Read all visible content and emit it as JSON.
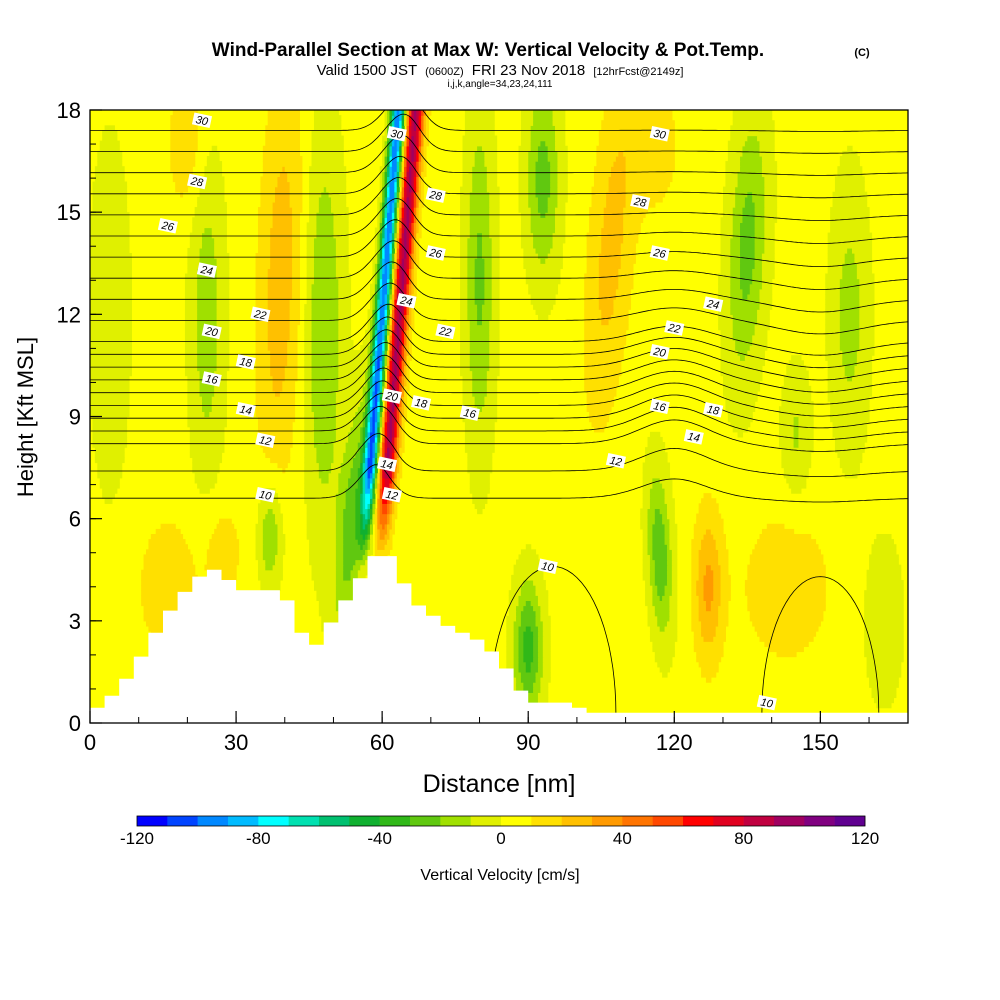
{
  "header": {
    "title": "Wind-Parallel Section at Max W: Vertical Velocity & Pot.Temp.",
    "copyright": "(C)",
    "valid_prefix": "Valid 1500 JST",
    "valid_utc": "(0600Z)",
    "valid_date": "FRI 23 Nov 2018",
    "forecast": "[12hrFcst@2149z]",
    "indices": "i,j,k,angle=34,23,24,111"
  },
  "chart_data": {
    "type": "heatmap",
    "xlabel": "Distance [nm]",
    "ylabel": "Height [Kft MSL]",
    "xlim": [
      0,
      168
    ],
    "ylim": [
      0,
      18
    ],
    "x_ticks": [
      "0",
      "30",
      "60",
      "90",
      "120",
      "150"
    ],
    "x_tick_values": [
      0,
      30,
      60,
      90,
      120,
      150
    ],
    "y_ticks": [
      "0",
      "3",
      "6",
      "9",
      "12",
      "15",
      "18"
    ],
    "y_tick_values": [
      0,
      3,
      6,
      9,
      12,
      15,
      18
    ],
    "colorbar": {
      "label": "Vertical Velocity [cm/s]",
      "min": -120,
      "max": 120,
      "step": 10,
      "tick_labels": [
        "-120",
        "-80",
        "-40",
        "0",
        "40",
        "80",
        "120"
      ],
      "tick_values": [
        -120,
        -80,
        -40,
        0,
        40,
        80,
        120
      ],
      "colors": [
        "#0000ff",
        "#0044ff",
        "#0088ff",
        "#00bbff",
        "#00ffff",
        "#00e0b0",
        "#00c070",
        "#10b030",
        "#30b818",
        "#60c810",
        "#a0e000",
        "#e0f000",
        "#ffff00",
        "#ffe000",
        "#ffc000",
        "#ff9a00",
        "#ff7400",
        "#ff4800",
        "#ff0000",
        "#e00020",
        "#c00040",
        "#a00060",
        "#800080",
        "#600090"
      ]
    },
    "isentropes_K": [
      10,
      11,
      12,
      13,
      14,
      15,
      16,
      17,
      18,
      19,
      20,
      21,
      22,
      23,
      24,
      25,
      26,
      27,
      28,
      29,
      30
    ],
    "isentrope_labels": [
      {
        "text": "30",
        "x": 23,
        "y": 17.7
      },
      {
        "text": "30",
        "x": 63,
        "y": 17.3
      },
      {
        "text": "30",
        "x": 117,
        "y": 17.3
      },
      {
        "text": "28",
        "x": 22,
        "y": 15.9
      },
      {
        "text": "28",
        "x": 71,
        "y": 15.5
      },
      {
        "text": "28",
        "x": 113,
        "y": 15.3
      },
      {
        "text": "26",
        "x": 16,
        "y": 14.6
      },
      {
        "text": "26",
        "x": 71,
        "y": 13.8
      },
      {
        "text": "26",
        "x": 117,
        "y": 13.8
      },
      {
        "text": "24",
        "x": 24,
        "y": 13.3
      },
      {
        "text": "24",
        "x": 65,
        "y": 12.4
      },
      {
        "text": "24",
        "x": 128,
        "y": 12.3
      },
      {
        "text": "22",
        "x": 35,
        "y": 12.0
      },
      {
        "text": "22",
        "x": 73,
        "y": 11.5
      },
      {
        "text": "22",
        "x": 120,
        "y": 11.6
      },
      {
        "text": "20",
        "x": 25,
        "y": 11.5
      },
      {
        "text": "20",
        "x": 62,
        "y": 9.6
      },
      {
        "text": "20",
        "x": 117,
        "y": 10.9
      },
      {
        "text": "18",
        "x": 32,
        "y": 10.6
      },
      {
        "text": "18",
        "x": 68,
        "y": 9.4
      },
      {
        "text": "18",
        "x": 128,
        "y": 9.2
      },
      {
        "text": "16",
        "x": 25,
        "y": 10.1
      },
      {
        "text": "16",
        "x": 78,
        "y": 9.1
      },
      {
        "text": "16",
        "x": 117,
        "y": 9.3
      },
      {
        "text": "14",
        "x": 32,
        "y": 9.2
      },
      {
        "text": "14",
        "x": 61,
        "y": 7.6
      },
      {
        "text": "14",
        "x": 124,
        "y": 8.4
      },
      {
        "text": "12",
        "x": 36,
        "y": 8.3
      },
      {
        "text": "12",
        "x": 62,
        "y": 6.7
      },
      {
        "text": "12",
        "x": 108,
        "y": 7.7
      },
      {
        "text": "10",
        "x": 36,
        "y": 6.7
      },
      {
        "text": "10",
        "x": 94,
        "y": 4.6
      },
      {
        "text": "10",
        "x": 139,
        "y": 0.6
      }
    ],
    "terrain_profile": {
      "x": [
        0,
        3,
        6,
        9,
        12,
        15,
        18,
        21,
        24,
        27,
        30,
        33,
        36,
        39,
        42,
        45,
        48,
        51,
        54,
        57,
        60,
        63,
        66,
        69,
        72,
        75,
        78,
        81,
        84,
        87,
        90,
        93,
        96,
        99,
        102,
        105,
        108,
        111,
        114,
        117,
        120,
        123,
        126,
        129,
        132,
        135,
        138,
        141,
        144,
        147,
        150,
        153,
        156,
        159,
        162,
        165,
        168
      ],
      "height": [
        0.3,
        0.6,
        1.0,
        1.6,
        2.3,
        3.0,
        3.6,
        4.1,
        4.5,
        4.5,
        3.9,
        3.9,
        3.9,
        3.9,
        3.3,
        2.0,
        2.6,
        3.3,
        3.9,
        4.6,
        5.2,
        4.6,
        3.6,
        3.3,
        3.0,
        2.7,
        2.6,
        2.3,
        1.9,
        1.3,
        0.6,
        0.6,
        0.6,
        0.6,
        0.3,
        0.3,
        0.3,
        0.3,
        0.3,
        0.3,
        0.3,
        0.3,
        0.3,
        0.3,
        0.3,
        0.3,
        0.3,
        0.3,
        0.3,
        0.3,
        0.3,
        0.3,
        0.3,
        0.3,
        0.3,
        0.3,
        0.3
      ]
    }
  }
}
